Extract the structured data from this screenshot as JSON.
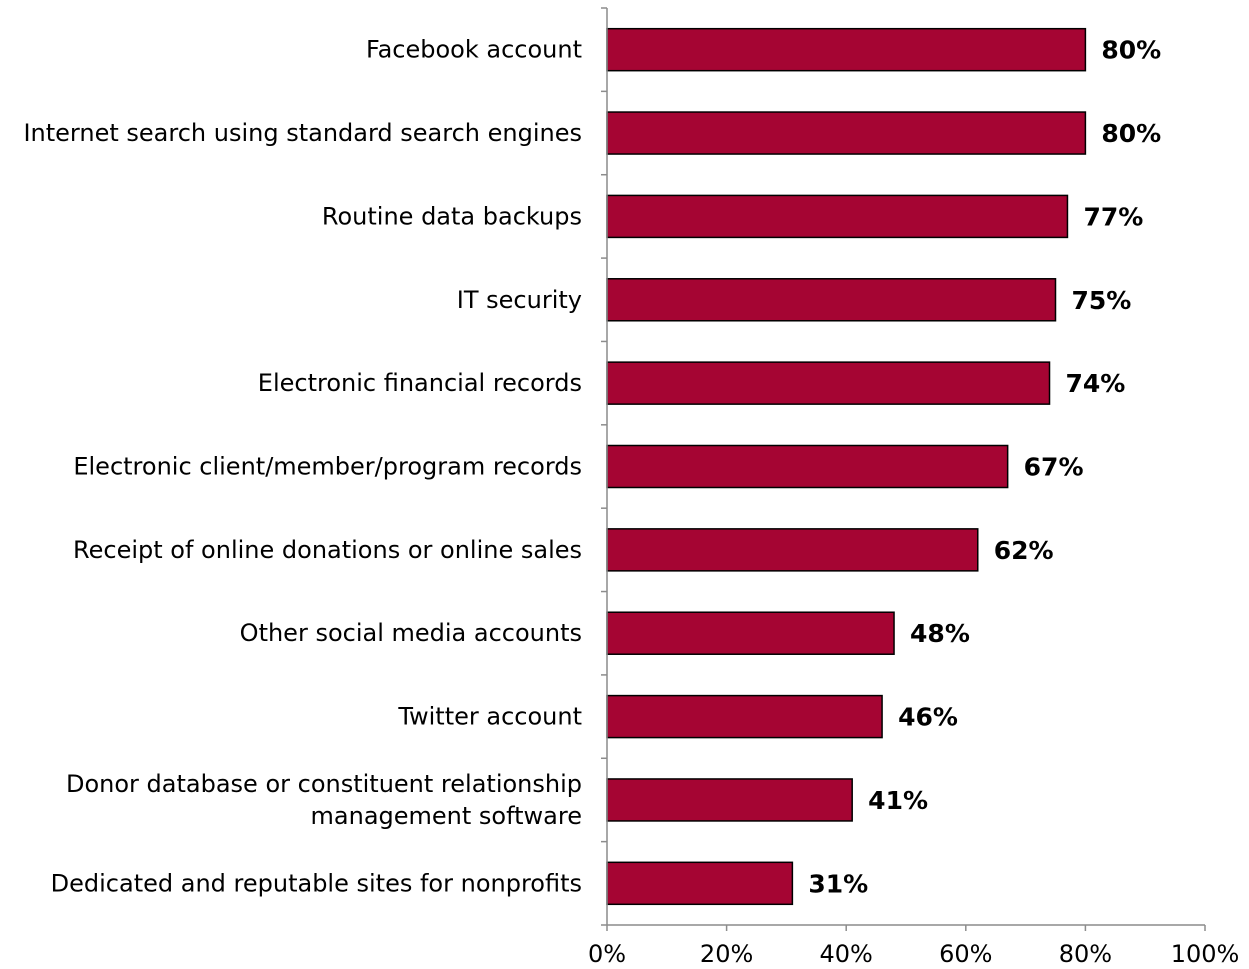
{
  "chart_data": {
    "type": "bar",
    "orientation": "horizontal",
    "categories": [
      "Facebook account",
      "Internet search using standard search engines",
      "Routine data backups",
      "IT security",
      "Electronic financial records",
      "Electronic client/member/program records",
      "Receipt of online donations or online sales",
      "Other social media accounts",
      "Twitter account",
      "Donor database or constituent relationship management software",
      "Dedicated and reputable sites for nonprofits"
    ],
    "category_label_lines": [
      [
        "Facebook account"
      ],
      [
        "Internet search using standard search engines"
      ],
      [
        "Routine data backups"
      ],
      [
        "IT security"
      ],
      [
        "Electronic financial records"
      ],
      [
        "Electronic client/member/program records"
      ],
      [
        "Receipt of online donations or online sales"
      ],
      [
        "Other social media accounts"
      ],
      [
        "Twitter account"
      ],
      [
        "Donor database or constituent relationship",
        "management software"
      ],
      [
        "Dedicated and reputable sites for nonprofits"
      ]
    ],
    "values": [
      80,
      80,
      77,
      75,
      74,
      67,
      62,
      48,
      46,
      41,
      31
    ],
    "value_labels": [
      "80%",
      "80%",
      "77%",
      "75%",
      "74%",
      "67%",
      "62%",
      "48%",
      "46%",
      "41%",
      "31%"
    ],
    "xlim": [
      0,
      100
    ],
    "x_ticks": [
      0,
      20,
      40,
      60,
      80,
      100
    ],
    "x_tick_labels": [
      "0%",
      "20%",
      "40%",
      "60%",
      "80%",
      "100%"
    ],
    "title": "",
    "xlabel": "",
    "ylabel": "",
    "grid": false,
    "legend": "none",
    "bar_color": "#A50533",
    "bar_edge_color": "#000000"
  }
}
